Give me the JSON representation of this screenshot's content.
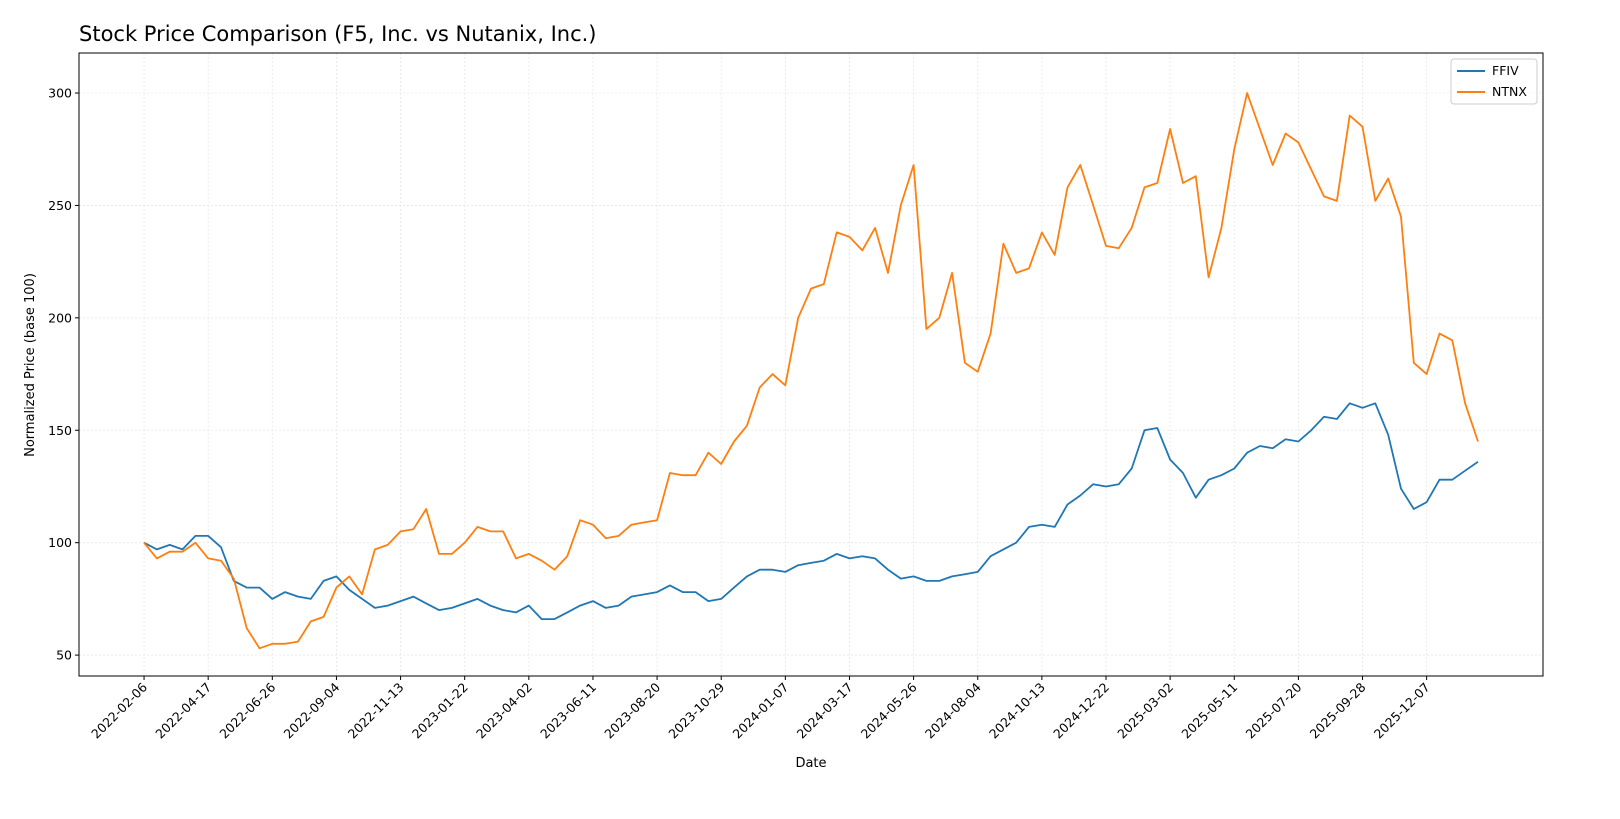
{
  "chart_data": {
    "type": "line",
    "title": "Stock Price Comparison (F5, Inc. vs Nutanix, Inc.)",
    "xlabel": "Date",
    "ylabel": "Normalized Price (base 100)",
    "xlim": [
      "2021-11-27",
      "2026-04-13"
    ],
    "ylim": [
      40.7,
      317.8
    ],
    "grid": true,
    "legend_position": "top-right",
    "x_ticks": [
      "2022-02-06",
      "2022-04-17",
      "2022-06-26",
      "2022-09-04",
      "2022-11-13",
      "2023-01-22",
      "2023-04-02",
      "2023-06-11",
      "2023-08-20",
      "2023-10-29",
      "2024-01-07",
      "2024-03-17",
      "2024-05-26",
      "2024-08-04",
      "2024-10-13",
      "2024-12-22",
      "2025-03-02",
      "2025-05-11",
      "2025-07-20",
      "2025-09-28",
      "2025-12-07"
    ],
    "y_ticks": [
      50,
      100,
      150,
      200,
      250,
      300
    ],
    "x": [
      "2022-02-06",
      "2022-02-20",
      "2022-03-06",
      "2022-03-20",
      "2022-04-03",
      "2022-04-17",
      "2022-05-01",
      "2022-05-15",
      "2022-05-29",
      "2022-06-12",
      "2022-06-26",
      "2022-07-10",
      "2022-07-24",
      "2022-08-07",
      "2022-08-21",
      "2022-09-04",
      "2022-09-18",
      "2022-10-02",
      "2022-10-16",
      "2022-10-30",
      "2022-11-13",
      "2022-11-27",
      "2022-12-11",
      "2022-12-25",
      "2023-01-08",
      "2023-01-22",
      "2023-02-05",
      "2023-02-19",
      "2023-03-05",
      "2023-03-19",
      "2023-04-02",
      "2023-04-16",
      "2023-04-30",
      "2023-05-14",
      "2023-05-28",
      "2023-06-11",
      "2023-06-25",
      "2023-07-09",
      "2023-07-23",
      "2023-08-06",
      "2023-08-20",
      "2023-09-03",
      "2023-09-17",
      "2023-10-01",
      "2023-10-15",
      "2023-10-29",
      "2023-11-12",
      "2023-11-26",
      "2023-12-10",
      "2023-12-24",
      "2024-01-07",
      "2024-01-21",
      "2024-02-04",
      "2024-02-18",
      "2024-03-03",
      "2024-03-17",
      "2024-03-31",
      "2024-04-14",
      "2024-04-28",
      "2024-05-12",
      "2024-05-26",
      "2024-06-09",
      "2024-06-23",
      "2024-07-07",
      "2024-07-21",
      "2024-08-04",
      "2024-08-18",
      "2024-09-01",
      "2024-09-15",
      "2024-09-29",
      "2024-10-13",
      "2024-10-27",
      "2024-11-10",
      "2024-11-24",
      "2024-12-08",
      "2024-12-22",
      "2025-01-05",
      "2025-01-19",
      "2025-02-02",
      "2025-02-16",
      "2025-03-02",
      "2025-03-16",
      "2025-03-30",
      "2025-04-13",
      "2025-04-27",
      "2025-05-11",
      "2025-05-25",
      "2025-06-08",
      "2025-06-22",
      "2025-07-06",
      "2025-07-20",
      "2025-08-03",
      "2025-08-17",
      "2025-08-31",
      "2025-09-14",
      "2025-09-28",
      "2025-10-12",
      "2025-10-26",
      "2025-11-09",
      "2025-11-23",
      "2025-12-07",
      "2025-12-21",
      "2026-01-04",
      "2026-01-18",
      "2026-02-01"
    ],
    "series": [
      {
        "name": "FFIV",
        "color": "#1f77b4",
        "values": [
          100,
          97,
          99,
          97,
          103,
          103,
          98,
          83,
          80,
          80,
          75,
          78,
          76,
          75,
          83,
          85,
          79,
          75,
          71,
          72,
          74,
          76,
          73,
          70,
          71,
          73,
          75,
          72,
          70,
          69,
          72,
          66,
          66,
          69,
          72,
          74,
          71,
          72,
          76,
          77,
          78,
          81,
          78,
          78,
          74,
          75,
          80,
          85,
          88,
          88,
          87,
          90,
          91,
          92,
          95,
          93,
          94,
          93,
          88,
          84,
          85,
          83,
          83,
          85,
          86,
          87,
          94,
          97,
          100,
          107,
          108,
          107,
          117,
          121,
          126,
          125,
          126,
          133,
          150,
          151,
          137,
          131,
          120,
          128,
          130,
          133,
          140,
          143,
          142,
          146,
          145,
          150,
          156,
          155,
          162,
          160,
          162,
          148,
          124,
          115,
          118,
          128,
          128,
          132,
          136
        ]
      },
      {
        "name": "NTNX",
        "color": "#ff7f0e",
        "values": [
          100,
          93,
          96,
          96,
          100,
          93,
          92,
          84,
          62,
          53,
          55,
          55,
          56,
          65,
          67,
          80,
          85,
          77,
          97,
          99,
          105,
          106,
          115,
          95,
          95,
          100,
          107,
          105,
          105,
          93,
          95,
          92,
          88,
          94,
          110,
          108,
          102,
          103,
          108,
          109,
          110,
          131,
          130,
          130,
          140,
          135,
          145,
          152,
          169,
          175,
          170,
          200,
          213,
          215,
          238,
          236,
          230,
          240,
          220,
          250,
          268,
          195,
          200,
          220,
          180,
          176,
          193,
          233,
          220,
          222,
          238,
          228,
          258,
          268,
          250,
          232,
          231,
          240,
          258,
          260,
          284,
          260,
          263,
          218,
          240,
          275,
          300,
          284,
          268,
          282,
          278,
          266,
          254,
          252,
          290,
          285,
          252,
          262,
          245,
          180,
          175,
          193,
          190,
          162,
          145
        ]
      }
    ]
  }
}
